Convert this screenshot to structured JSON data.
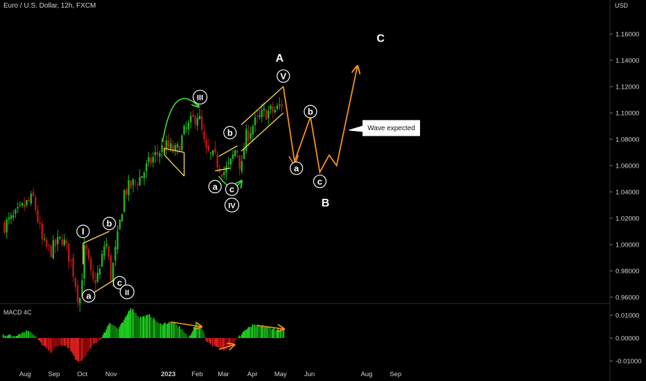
{
  "header": {
    "title": "Euro / U.S. Dollar, 12h, FXCM",
    "currency": "USD"
  },
  "indicator": {
    "name": "MACD 4C"
  },
  "chart_data": [
    {
      "type": "candlestick",
      "title": "Euro / U.S. Dollar, 12h, FXCM",
      "ylabel": "USD",
      "ylim": [
        0.95,
        1.165
      ],
      "yticks": [
        "1.16000",
        "1.14000",
        "1.12000",
        "1.10000",
        "1.08000",
        "1.06000",
        "1.04000",
        "1.02000",
        "1.00000",
        "0.98000",
        "0.96000"
      ],
      "xticks": [
        "Aug",
        "Sep",
        "Oct",
        "Nov",
        "2023",
        "Feb",
        "Mar",
        "Apr",
        "May",
        "Jun",
        "Aug",
        "Sep"
      ],
      "price_path": [
        [
          "2022-07-10",
          1.015
        ],
        [
          "2022-07-20",
          1.02
        ],
        [
          "2022-08-01",
          1.03
        ],
        [
          "2022-08-10",
          1.035
        ],
        [
          "2022-08-20",
          1.0
        ],
        [
          "2022-08-28",
          0.995
        ],
        [
          "2022-09-10",
          1.005
        ],
        [
          "2022-09-20",
          0.985
        ],
        [
          "2022-09-28",
          0.955
        ],
        [
          "2022-10-04",
          1.0
        ],
        [
          "2022-10-12",
          0.97
        ],
        [
          "2022-10-20",
          0.98
        ],
        [
          "2022-10-26",
          1.005
        ],
        [
          "2022-11-01",
          0.975
        ],
        [
          "2022-11-08",
          1.005
        ],
        [
          "2022-11-15",
          1.04
        ],
        [
          "2022-12-01",
          1.05
        ],
        [
          "2022-12-15",
          1.065
        ],
        [
          "2022-12-28",
          1.075
        ],
        [
          "2023-01-10",
          1.07
        ],
        [
          "2023-01-18",
          1.085
        ],
        [
          "2023-02-02",
          1.1
        ],
        [
          "2023-02-10",
          1.07
        ],
        [
          "2023-02-20",
          1.065
        ],
        [
          "2023-03-01",
          1.055
        ],
        [
          "2023-03-08",
          1.06
        ],
        [
          "2023-03-15",
          1.075
        ],
        [
          "2023-03-20",
          1.055
        ],
        [
          "2023-03-24",
          1.08
        ],
        [
          "2023-04-01",
          1.09
        ],
        [
          "2023-04-14",
          1.1
        ],
        [
          "2023-04-26",
          1.102
        ],
        [
          "2023-05-04",
          1.108
        ]
      ],
      "forecast_path": [
        [
          "2023-05-04",
          1.12
        ],
        [
          "2023-05-16",
          1.063
        ],
        [
          "2023-06-02",
          1.097
        ],
        [
          "2023-06-12",
          1.055
        ],
        [
          "2023-06-22",
          1.068
        ],
        [
          "2023-06-30",
          1.06
        ],
        [
          "2023-07-22",
          1.135
        ]
      ],
      "wave_labels": [
        {
          "text": "I",
          "date": "2022-10-02",
          "price": 1.01
        },
        {
          "text": "b",
          "date": "2022-10-30",
          "price": 1.016
        },
        {
          "text": "a",
          "date": "2022-10-08",
          "price": 0.961
        },
        {
          "text": "c",
          "date": "2022-11-10",
          "price": 0.971
        },
        {
          "text": "II",
          "date": "2022-11-18",
          "price": 0.964
        },
        {
          "text": "III",
          "date": "2023-02-04",
          "price": 1.112
        },
        {
          "text": "b",
          "date": "2023-03-08",
          "price": 1.085
        },
        {
          "text": "a",
          "date": "2023-02-20",
          "price": 1.044
        },
        {
          "text": "c",
          "date": "2023-03-10",
          "price": 1.042
        },
        {
          "text": "IV",
          "date": "2023-03-10",
          "price": 1.03
        },
        {
          "text": "V",
          "date": "2023-05-04",
          "price": 1.128
        },
        {
          "text": "a",
          "date": "2023-05-18",
          "price": 1.058
        },
        {
          "text": "b",
          "date": "2023-06-02",
          "price": 1.101
        },
        {
          "text": "c",
          "date": "2023-06-12",
          "price": 1.048
        }
      ],
      "big_labels": [
        {
          "text": "A",
          "date": "2023-04-30",
          "price": 1.142
        },
        {
          "text": "B",
          "date": "2023-06-18",
          "price": 1.032
        },
        {
          "text": "C",
          "date": "2023-08-16",
          "price": 1.157
        }
      ],
      "callout": {
        "text": "Wave expected",
        "date": "2023-07-28",
        "price": 1.089
      }
    },
    {
      "type": "histogram",
      "title": "MACD 4C",
      "ylim": [
        -0.0115,
        0.0115
      ],
      "yticks": [
        "0.01000",
        "0.00000",
        "-0.01000"
      ],
      "colors": {
        "positive": "#1fd11f",
        "negative": "#e01e1e",
        "darkgreen": "#0d7a0d",
        "darkred": "#8b0a0a"
      },
      "histogram_path": [
        [
          "2022-07-08",
          0.0015
        ],
        [
          "2022-07-20",
          0.001
        ],
        [
          "2022-08-05",
          0.0035
        ],
        [
          "2022-08-12",
          0.0005
        ],
        [
          "2022-08-20",
          -0.0035
        ],
        [
          "2022-08-28",
          -0.006
        ],
        [
          "2022-09-06",
          -0.003
        ],
        [
          "2022-09-16",
          -0.004
        ],
        [
          "2022-09-26",
          -0.011
        ],
        [
          "2022-10-02",
          -0.009
        ],
        [
          "2022-10-12",
          -0.003
        ],
        [
          "2022-10-22",
          0.0005
        ],
        [
          "2022-10-30",
          0.007
        ],
        [
          "2022-11-08",
          0.004
        ],
        [
          "2022-11-15",
          0.008
        ],
        [
          "2022-11-21",
          0.0135
        ],
        [
          "2022-12-01",
          0.009
        ],
        [
          "2022-12-12",
          0.01
        ],
        [
          "2022-12-22",
          0.006
        ],
        [
          "2023-01-05",
          0.007
        ],
        [
          "2023-01-15",
          0.004
        ],
        [
          "2023-01-22",
          0.0
        ],
        [
          "2023-01-30",
          0.006
        ],
        [
          "2023-02-05",
          0.005
        ],
        [
          "2023-02-10",
          -0.001
        ],
        [
          "2023-02-20",
          -0.004
        ],
        [
          "2023-03-01",
          -0.005
        ],
        [
          "2023-03-10",
          -0.003
        ],
        [
          "2023-03-16",
          0.0
        ],
        [
          "2023-03-22",
          0.003
        ],
        [
          "2023-04-01",
          0.0055
        ],
        [
          "2023-04-14",
          0.005
        ],
        [
          "2023-04-24",
          0.004
        ],
        [
          "2023-05-04",
          0.003
        ]
      ],
      "annotation_arrows": [
        {
          "from": [
            "2023-01-04",
            0.007
          ],
          "to": [
            "2023-02-05",
            0.005
          ],
          "color": "#f7931e"
        },
        {
          "from": [
            "2023-02-24",
            -0.005
          ],
          "to": [
            "2023-03-12",
            -0.003
          ],
          "color": "#f7931e"
        },
        {
          "from": [
            "2023-04-06",
            0.0055
          ],
          "to": [
            "2023-05-04",
            0.004
          ],
          "color": "#f7931e"
        }
      ]
    }
  ],
  "colors": {
    "background": "#000000",
    "up": "#1fb81f",
    "down": "#c41414",
    "orange": "#f7931e",
    "yellow": "#ffe14d",
    "green_arrow": "#3ddc3d"
  }
}
